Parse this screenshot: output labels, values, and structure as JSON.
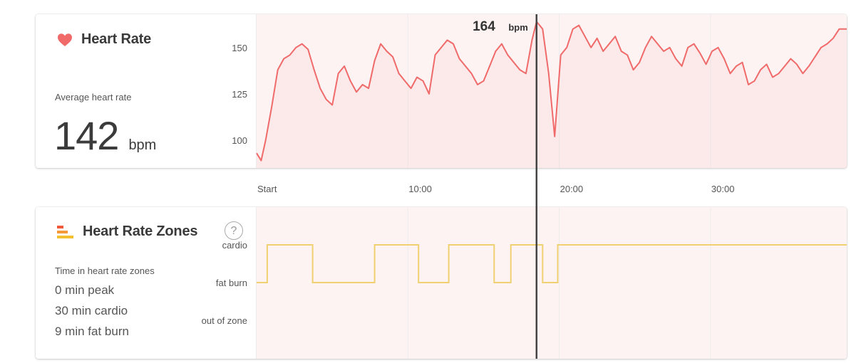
{
  "heart_rate": {
    "title": "Heart Rate",
    "avg_label": "Average heart rate",
    "avg_value": "142",
    "avg_unit": "bpm",
    "cursor_value": "164",
    "cursor_unit": "bpm",
    "color": "#f06a6a"
  },
  "zones": {
    "title": "Heart Rate Zones",
    "help_symbol": "?",
    "time_label": "Time in heart rate zones",
    "summary": [
      "0 min peak",
      "30 min cardio",
      "9 min fat burn"
    ],
    "color": "#f0d070"
  },
  "x_axis": {
    "ticks": [
      "Start",
      "10:00",
      "20:00",
      "30:00"
    ],
    "tick_minutes": [
      0,
      10,
      20,
      30
    ]
  },
  "chart_data": [
    {
      "type": "area",
      "title": "Heart Rate",
      "xlabel": "",
      "ylabel": "",
      "x_unit": "minutes",
      "xlim": [
        0,
        39
      ],
      "ylim": [
        85,
        168
      ],
      "yticks": [
        100,
        125,
        150
      ],
      "cursor": {
        "x": 18.5,
        "label": "164 bpm"
      },
      "x": [
        0,
        0.3,
        0.6,
        1,
        1.4,
        1.8,
        2.2,
        2.6,
        3,
        3.4,
        3.8,
        4.2,
        4.6,
        5,
        5.4,
        5.8,
        6.2,
        6.6,
        7,
        7.4,
        7.8,
        8.2,
        8.6,
        9,
        9.4,
        9.8,
        10.2,
        10.6,
        11,
        11.4,
        11.8,
        12.2,
        12.6,
        13,
        13.4,
        13.8,
        14.2,
        14.6,
        15,
        15.4,
        15.8,
        16.2,
        16.6,
        17,
        17.4,
        17.8,
        18.2,
        18.5,
        18.9,
        19.3,
        19.7,
        20.1,
        20.5,
        20.9,
        21.3,
        21.7,
        22.1,
        22.5,
        22.9,
        23.3,
        23.7,
        24.1,
        24.5,
        24.9,
        25.3,
        25.7,
        26.1,
        26.5,
        26.9,
        27.3,
        27.7,
        28.1,
        28.5,
        28.9,
        29.3,
        29.7,
        30.1,
        30.5,
        30.9,
        31.3,
        31.7,
        32.1,
        32.5,
        32.9,
        33.3,
        33.7,
        34.1,
        34.5,
        34.9,
        35.3,
        35.7,
        36.1,
        36.5,
        36.9,
        37.3,
        37.7,
        38.1,
        38.5,
        39
      ],
      "y": [
        93,
        89,
        100,
        118,
        138,
        144,
        146,
        150,
        152,
        149,
        138,
        128,
        122,
        119,
        136,
        140,
        132,
        126,
        130,
        128,
        143,
        152,
        148,
        145,
        136,
        132,
        128,
        134,
        132,
        125,
        146,
        150,
        154,
        152,
        144,
        140,
        136,
        130,
        132,
        140,
        148,
        152,
        146,
        142,
        138,
        136,
        154,
        164,
        160,
        136,
        102,
        146,
        150,
        160,
        162,
        156,
        150,
        155,
        148,
        152,
        156,
        148,
        146,
        138,
        142,
        150,
        156,
        152,
        148,
        150,
        144,
        140,
        150,
        152,
        147,
        141,
        148,
        150,
        144,
        136,
        140,
        142,
        130,
        132,
        138,
        141,
        134,
        136,
        140,
        144,
        141,
        136,
        140,
        145,
        150,
        152,
        155,
        160,
        160
      ]
    },
    {
      "type": "line",
      "title": "Heart Rate Zones",
      "xlabel": "",
      "ylabel": "",
      "x_unit": "minutes",
      "xlim": [
        0,
        39
      ],
      "categories": [
        "out of zone",
        "fat burn",
        "cardio"
      ],
      "cursor": {
        "x": 18.5
      },
      "x": [
        0,
        0.7,
        0.7,
        3.7,
        3.7,
        7.8,
        7.8,
        10.7,
        10.7,
        12.7,
        12.7,
        15.7,
        15.7,
        16.8,
        16.8,
        18.9,
        18.9,
        19.9,
        19.9,
        39
      ],
      "y": [
        "fat burn",
        "fat burn",
        "cardio",
        "cardio",
        "fat burn",
        "fat burn",
        "cardio",
        "cardio",
        "fat burn",
        "fat burn",
        "cardio",
        "cardio",
        "fat burn",
        "fat burn",
        "cardio",
        "cardio",
        "fat burn",
        "fat burn",
        "cardio",
        "cardio"
      ]
    }
  ]
}
